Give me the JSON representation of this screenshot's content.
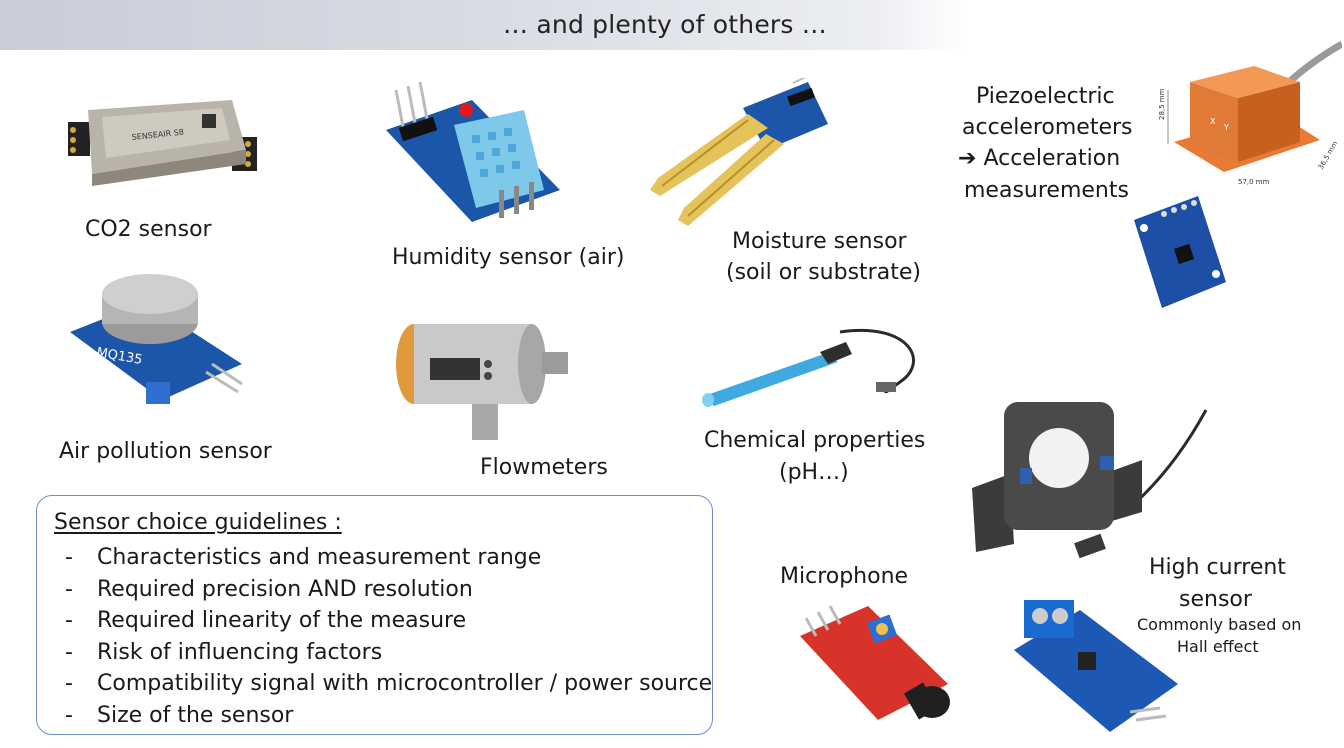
{
  "header": {
    "title": "… and plenty of others …"
  },
  "sensors": {
    "co2": {
      "label": "CO2 sensor"
    },
    "humidity": {
      "label": "Humidity sensor (air)"
    },
    "moisture": {
      "line1": "Moisture sensor",
      "line2": "(soil or substrate)"
    },
    "piezo": {
      "line1": "Piezoelectric",
      "line2": "accelerometers",
      "line3": "Acceleration",
      "line4": "measurements",
      "arrow": "➔"
    },
    "air_pollution": {
      "label": "Air pollution sensor",
      "chip_text": "MQ135"
    },
    "flowmeter": {
      "label": "Flowmeters"
    },
    "chemical": {
      "line1": "Chemical properties",
      "line2": "(pH…)"
    },
    "microphone": {
      "label": "Microphone"
    },
    "high_current": {
      "line1": "High current",
      "line2": "sensor",
      "note1": "Commonly based on",
      "note2": "Hall effect"
    }
  },
  "accel_dims": {
    "height": "28,5 mm",
    "width": "57,0 mm",
    "depth": "36,5 mm"
  },
  "guidelines": {
    "title": "Sensor choice guidelines :",
    "items": [
      "Characteristics and measurement range",
      "Required precision AND resolution",
      "Required linearity of the measure",
      "Risk of influencing factors",
      "Compatibility signal with microcontroller / power source",
      "Size of the sensor"
    ]
  }
}
